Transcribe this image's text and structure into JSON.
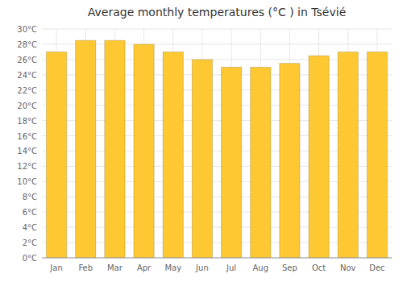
{
  "chart_data": {
    "type": "bar",
    "title": "Average monthly temperatures (°C ) in Tsévié",
    "categories": [
      "Jan",
      "Feb",
      "Mar",
      "Apr",
      "May",
      "Jun",
      "Jul",
      "Aug",
      "Sep",
      "Oct",
      "Nov",
      "Dec"
    ],
    "values": [
      27.0,
      28.5,
      28.5,
      28.0,
      27.0,
      26.0,
      25.0,
      25.0,
      25.5,
      26.5,
      27.0,
      27.0
    ],
    "color": "#FDC832",
    "ylim": [
      0,
      30
    ],
    "yticks": [
      {
        "value": 0,
        "label": "0°C"
      },
      {
        "value": 2,
        "label": "2°C"
      },
      {
        "value": 4,
        "label": "4°C"
      },
      {
        "value": 6,
        "label": "6°C"
      },
      {
        "value": 8,
        "label": "8°C"
      },
      {
        "value": 10,
        "label": "10°C"
      },
      {
        "value": 12,
        "label": "12°C"
      },
      {
        "value": 14,
        "label": "14°C"
      },
      {
        "value": 16,
        "label": "16°C"
      },
      {
        "value": 18,
        "label": "18°C"
      },
      {
        "value": 20,
        "label": "20°C"
      },
      {
        "value": 22,
        "label": "22°C"
      },
      {
        "value": 24,
        "label": "24°C"
      },
      {
        "value": 26,
        "label": "26°C"
      },
      {
        "value": 28,
        "label": "28°C"
      },
      {
        "value": 30,
        "label": "30°C"
      }
    ],
    "grid": true
  }
}
